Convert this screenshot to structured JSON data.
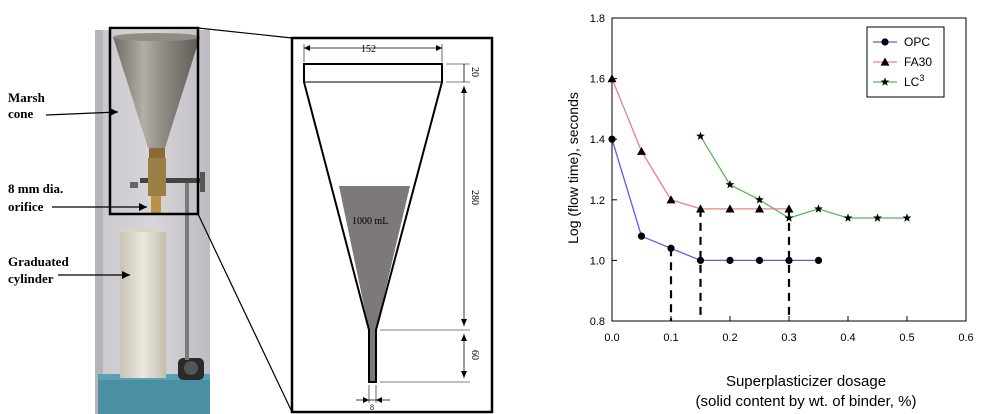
{
  "apparatus": {
    "labels": {
      "marsh_cone": [
        "Marsh",
        "cone"
      ],
      "orifice": [
        "8 mm dia.",
        "orifice"
      ],
      "cylinder": [
        "Graduated",
        "cylinder"
      ]
    },
    "drawing": {
      "top_width": "152",
      "top_rim": "20",
      "cone_height": "280",
      "nozzle_length": "60",
      "orifice": "8",
      "volume": "1000 mL"
    }
  },
  "chart_data": {
    "type": "line",
    "xlabel": [
      "Superplasticizer dosage",
      "(solid content by wt. of binder, %)"
    ],
    "ylabel": "Log (flow time), seconds",
    "xlim": [
      0,
      0.6
    ],
    "ylim": [
      0.8,
      1.8
    ],
    "x_ticks": [
      "0.0",
      "0.1",
      "0.2",
      "0.3",
      "0.4",
      "0.5",
      "0.6"
    ],
    "y_ticks": [
      "0.8",
      "1.0",
      "1.2",
      "1.4",
      "1.6",
      "1.8"
    ],
    "grid": false,
    "legend_position": "top-right",
    "series": [
      {
        "name": "OPC",
        "color": "#5b5bf0",
        "marker": "circle",
        "x": [
          0.0,
          0.05,
          0.1,
          0.15,
          0.2,
          0.25,
          0.3,
          0.35
        ],
        "y": [
          1.4,
          1.08,
          1.04,
          1.0,
          1.0,
          1.0,
          1.0,
          1.0
        ]
      },
      {
        "name": "FA30",
        "color": "#f08080",
        "marker": "triangle",
        "x": [
          0.0,
          0.05,
          0.1,
          0.15,
          0.2,
          0.25,
          0.3
        ],
        "y": [
          1.6,
          1.36,
          1.2,
          1.17,
          1.17,
          1.17,
          1.17
        ]
      },
      {
        "name": "LC",
        "name_sup": "3",
        "color": "#55bb55",
        "marker": "star",
        "x": [
          0.15,
          0.2,
          0.25,
          0.3,
          0.35,
          0.4,
          0.45,
          0.5
        ],
        "y": [
          1.41,
          1.25,
          1.2,
          1.14,
          1.17,
          1.14,
          1.14,
          1.14
        ]
      }
    ],
    "saturation_lines": [
      {
        "x": 0.1,
        "y": 1.04
      },
      {
        "x": 0.15,
        "y": 1.17
      },
      {
        "x": 0.3,
        "y": 1.17
      }
    ]
  }
}
